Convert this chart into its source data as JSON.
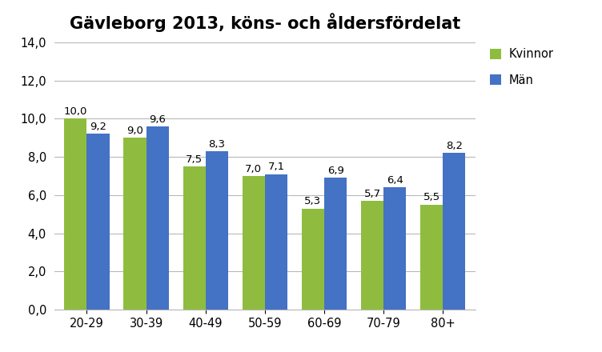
{
  "title": "Gävleborg 2013, köns- och åldersfördelat",
  "categories": [
    "20-29",
    "30-39",
    "40-49",
    "50-59",
    "60-69",
    "70-79",
    "80+"
  ],
  "kvinnor_values": [
    10.0,
    9.0,
    7.5,
    7.0,
    5.3,
    5.7,
    5.5
  ],
  "man_values": [
    9.2,
    9.6,
    8.3,
    7.1,
    6.9,
    6.4,
    8.2
  ],
  "kvinnor_label": "Kvinnor",
  "man_label": "Män",
  "kvinnor_color": "#8fbc3e",
  "man_color": "#4472c4",
  "ylim": [
    0,
    14
  ],
  "yticks": [
    0.0,
    2.0,
    4.0,
    6.0,
    8.0,
    10.0,
    12.0,
    14.0
  ],
  "bar_width": 0.38,
  "title_fontsize": 15,
  "tick_fontsize": 10.5,
  "label_fontsize": 9.5,
  "legend_fontsize": 10.5,
  "background_color": "#ffffff",
  "grid_color": "#b8b8b8"
}
